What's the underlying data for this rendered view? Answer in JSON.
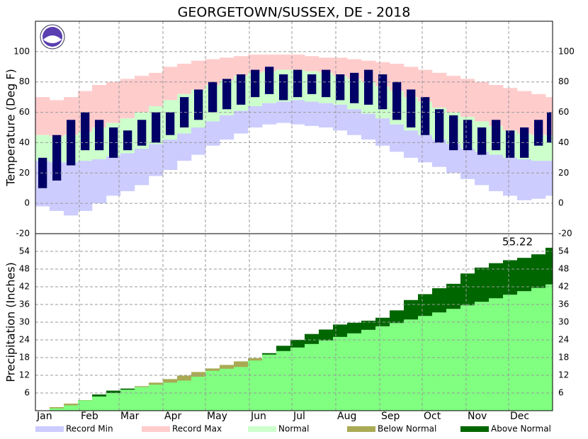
{
  "chart_data": [
    {
      "type": "temperature-band",
      "title": "GEORGETOWN/SUSSEX, DE - 2018",
      "y_label": "Temperature (Deg F)",
      "x": [
        1,
        11,
        21,
        31,
        41,
        51,
        61,
        71,
        81,
        91,
        101,
        111,
        121,
        131,
        141,
        151,
        161,
        171,
        181,
        191,
        201,
        211,
        221,
        231,
        241,
        251,
        261,
        271,
        281,
        291,
        301,
        311,
        321,
        331,
        341,
        351,
        361
      ],
      "xlim": [
        1,
        366
      ],
      "xticks": [
        {
          "value": 1,
          "label": "Jan"
        },
        {
          "value": 32,
          "label": "Feb"
        },
        {
          "value": 60,
          "label": "Mar"
        },
        {
          "value": 91,
          "label": "Apr"
        },
        {
          "value": 121,
          "label": "May"
        },
        {
          "value": 152,
          "label": "Jun"
        },
        {
          "value": 182,
          "label": "Jul"
        },
        {
          "value": 213,
          "label": "Aug"
        },
        {
          "value": 244,
          "label": "Sep"
        },
        {
          "value": 274,
          "label": "Oct"
        },
        {
          "value": 305,
          "label": "Nov"
        },
        {
          "value": 335,
          "label": "Dec"
        }
      ],
      "ylim": [
        -20,
        120
      ],
      "yticks": [
        -20,
        0,
        20,
        40,
        60,
        80,
        100
      ],
      "grid": true,
      "series": [
        {
          "name": "Record Min",
          "color": "#ccccff",
          "values": [
            -2,
            -5,
            -8,
            -5,
            0,
            5,
            8,
            12,
            18,
            22,
            28,
            32,
            38,
            42,
            46,
            50,
            52,
            53,
            52,
            51,
            50,
            48,
            45,
            42,
            38,
            34,
            30,
            27,
            24,
            20,
            16,
            12,
            8,
            5,
            2,
            3,
            5
          ]
        },
        {
          "name": "Record Max",
          "color": "#ffcccc",
          "values": [
            70,
            68,
            70,
            74,
            78,
            80,
            82,
            84,
            86,
            90,
            92,
            94,
            95,
            96,
            97,
            98,
            98,
            98,
            98,
            97,
            96,
            96,
            95,
            94,
            93,
            92,
            90,
            88,
            86,
            84,
            82,
            80,
            78,
            76,
            74,
            72,
            70
          ]
        },
        {
          "name": "Normal",
          "color": "#ccffcc",
          "values": [
            45,
            44,
            45,
            47,
            50,
            53,
            56,
            60,
            64,
            68,
            72,
            75,
            78,
            81,
            84,
            86,
            87,
            88,
            88,
            87,
            86,
            84,
            82,
            80,
            77,
            74,
            70,
            67,
            63,
            60,
            57,
            54,
            51,
            48,
            46,
            45,
            45
          ],
          "low": [
            28,
            27,
            27,
            28,
            29,
            31,
            33,
            36,
            39,
            42,
            46,
            50,
            54,
            58,
            61,
            64,
            66,
            67,
            68,
            67,
            66,
            65,
            62,
            59,
            56,
            52,
            48,
            45,
            42,
            39,
            36,
            34,
            32,
            30,
            29,
            28,
            28
          ]
        }
      ],
      "observed": {
        "color": "#000066",
        "high": [
          30,
          45,
          55,
          60,
          55,
          50,
          48,
          55,
          60,
          60,
          70,
          75,
          80,
          82,
          85,
          88,
          90,
          85,
          88,
          85,
          88,
          85,
          86,
          88,
          85,
          80,
          75,
          70,
          62,
          58,
          55,
          50,
          55,
          48,
          50,
          55,
          60
        ],
        "low": [
          10,
          15,
          25,
          35,
          35,
          30,
          35,
          38,
          40,
          45,
          50,
          55,
          60,
          62,
          65,
          70,
          72,
          68,
          70,
          72,
          70,
          68,
          66,
          65,
          62,
          55,
          50,
          45,
          40,
          35,
          35,
          32,
          35,
          30,
          30,
          38,
          40
        ]
      }
    },
    {
      "type": "precip-cumulative",
      "y_label": "Precipitation (Inches)",
      "x": [
        1,
        11,
        21,
        31,
        41,
        51,
        61,
        71,
        81,
        91,
        101,
        111,
        121,
        131,
        141,
        151,
        161,
        171,
        181,
        191,
        201,
        211,
        221,
        231,
        241,
        251,
        261,
        271,
        281,
        291,
        301,
        311,
        321,
        331,
        341,
        351,
        361
      ],
      "xlim": [
        1,
        366
      ],
      "ylim": [
        0,
        60
      ],
      "yticks": [
        6,
        12,
        18,
        24,
        30,
        36,
        42,
        48,
        54
      ],
      "grid": true,
      "normal": {
        "color": "#80ff80",
        "values": [
          0,
          1.2,
          2.4,
          3.6,
          4.8,
          6.0,
          7.1,
          8.3,
          9.5,
          10.7,
          11.9,
          13.1,
          14.3,
          15.5,
          16.7,
          17.8,
          19,
          20.2,
          21.4,
          22.6,
          23.8,
          25,
          26.2,
          27.4,
          28.6,
          29.7,
          30.9,
          32.1,
          33.3,
          34.5,
          35.7,
          36.9,
          38.1,
          39.3,
          40.5,
          41.6,
          42.8
        ]
      },
      "observed": {
        "values": [
          0.1,
          0.8,
          1.8,
          3.5,
          5.5,
          6.8,
          7.5,
          8.0,
          8.8,
          9.5,
          10.2,
          11.5,
          13.5,
          14.2,
          14.8,
          17.0,
          19.5,
          22.0,
          24.0,
          26.0,
          27.5,
          29.2,
          29.8,
          30.5,
          31.5,
          34.0,
          37.5,
          39.5,
          41.5,
          43.0,
          46.5,
          48.5,
          50.0,
          51.0,
          51.8,
          53.0,
          55.22
        ]
      },
      "series": [
        {
          "name": "Below Normal",
          "color": "#aaaa55"
        },
        {
          "name": "Above Normal",
          "color": "#006600"
        }
      ]
    }
  ]
}
